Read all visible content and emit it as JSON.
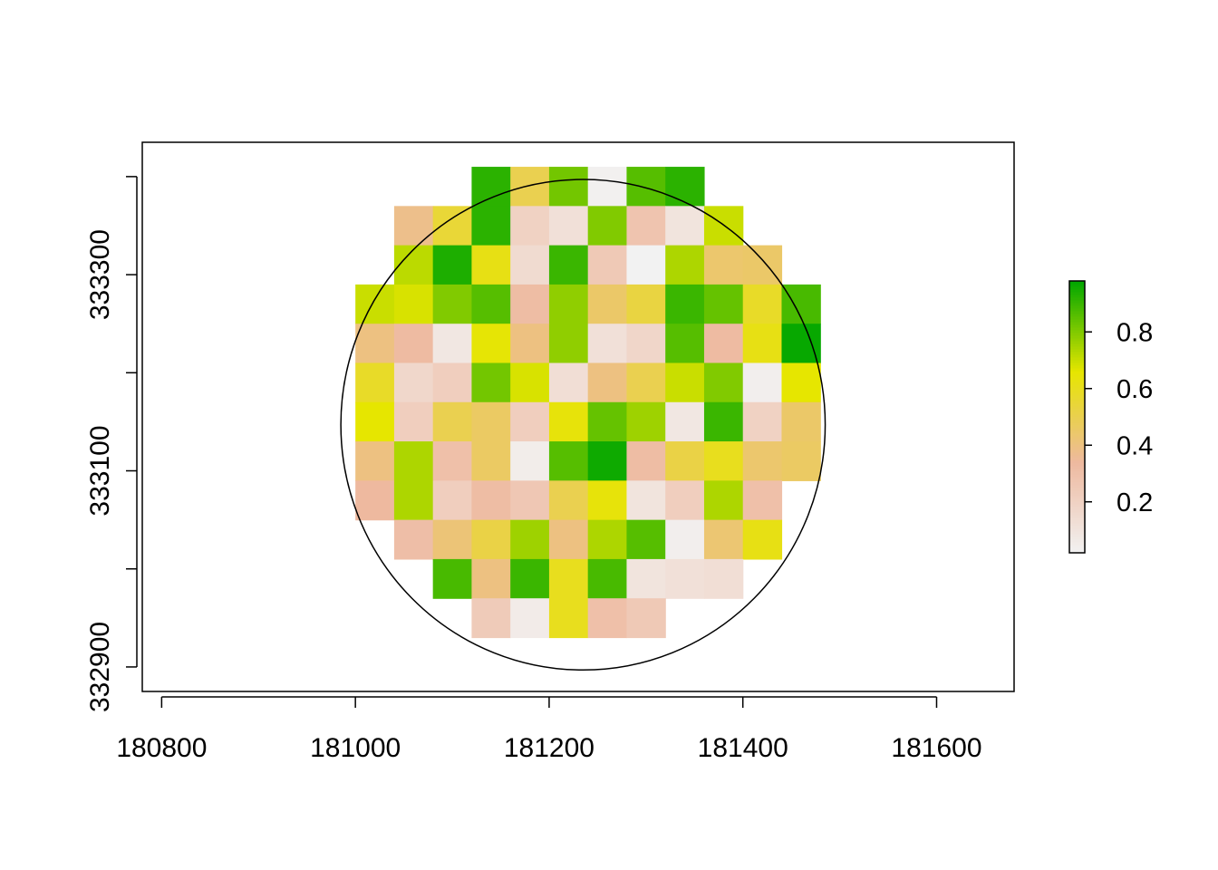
{
  "chart_data": {
    "type": "heatmap",
    "title": "",
    "xlabel": "",
    "ylabel": "",
    "xlim": [
      180780,
      181680
    ],
    "ylim": [
      332875,
      333435
    ],
    "x_ticks": [
      180800,
      181000,
      181200,
      181400,
      181600
    ],
    "x_tick_labels": [
      "180800",
      "181000",
      "181200",
      "181400",
      "181600"
    ],
    "y_ticks": [
      332900,
      333000,
      333100,
      333200,
      333300,
      333400
    ],
    "y_tick_labels": [
      "332900",
      "",
      "333100",
      "",
      "333300",
      ""
    ],
    "grid": false,
    "legend_position": "right",
    "raster": {
      "xmin": 181000,
      "ymax": 333410,
      "cell_width": 40,
      "cell_height": 40,
      "ncol": 12,
      "nrow": 12,
      "values": [
        [
          null,
          null,
          null,
          0.92,
          0.5,
          0.82,
          0.03,
          0.86,
          0.92,
          null,
          null,
          null
        ],
        [
          null,
          0.38,
          0.55,
          0.92,
          0.2,
          0.12,
          0.8,
          0.28,
          0.1,
          0.7,
          null,
          null
        ],
        [
          null,
          0.72,
          0.94,
          0.62,
          0.15,
          0.9,
          0.25,
          0.02,
          0.74,
          0.44,
          0.45,
          null
        ],
        [
          0.7,
          0.68,
          0.8,
          0.86,
          0.32,
          0.78,
          0.45,
          0.53,
          0.9,
          0.84,
          0.58,
          0.88
        ],
        [
          0.4,
          0.33,
          0.08,
          0.65,
          0.4,
          0.78,
          0.12,
          0.18,
          0.86,
          0.33,
          0.62,
          0.97
        ],
        [
          0.58,
          0.17,
          0.22,
          0.82,
          0.68,
          0.13,
          0.4,
          0.5,
          0.7,
          0.8,
          0.04,
          0.66
        ],
        [
          0.66,
          0.22,
          0.5,
          0.46,
          0.22,
          0.64,
          0.84,
          0.76,
          0.08,
          0.9,
          0.2,
          0.45
        ],
        [
          0.4,
          0.74,
          0.3,
          0.46,
          0.05,
          0.86,
          0.96,
          0.32,
          0.52,
          0.6,
          0.44,
          0.46
        ],
        [
          0.34,
          0.74,
          0.22,
          0.32,
          0.26,
          0.5,
          0.64,
          0.1,
          0.22,
          0.74,
          0.3,
          null
        ],
        [
          null,
          0.31,
          0.42,
          0.52,
          0.76,
          0.4,
          0.74,
          0.86,
          0.04,
          0.43,
          0.62,
          null
        ],
        [
          null,
          null,
          0.88,
          0.4,
          0.9,
          0.6,
          0.88,
          0.1,
          0.12,
          0.13,
          null,
          null
        ],
        [
          null,
          null,
          null,
          0.24,
          0.06,
          0.6,
          0.3,
          0.25,
          null,
          null,
          null,
          null
        ]
      ]
    },
    "circle": {
      "cx": 181235,
      "cy": 333147,
      "r": 250
    },
    "legend": {
      "min": 0.02,
      "max": 0.98,
      "ticks": [
        0.2,
        0.4,
        0.6,
        0.8
      ],
      "tick_labels": [
        "0.2",
        "0.4",
        "0.6",
        "0.8"
      ]
    },
    "colors": {
      "ramp": [
        "#f2f2f2",
        "#eeb99f",
        "#e6e600",
        "#00a600"
      ]
    }
  }
}
